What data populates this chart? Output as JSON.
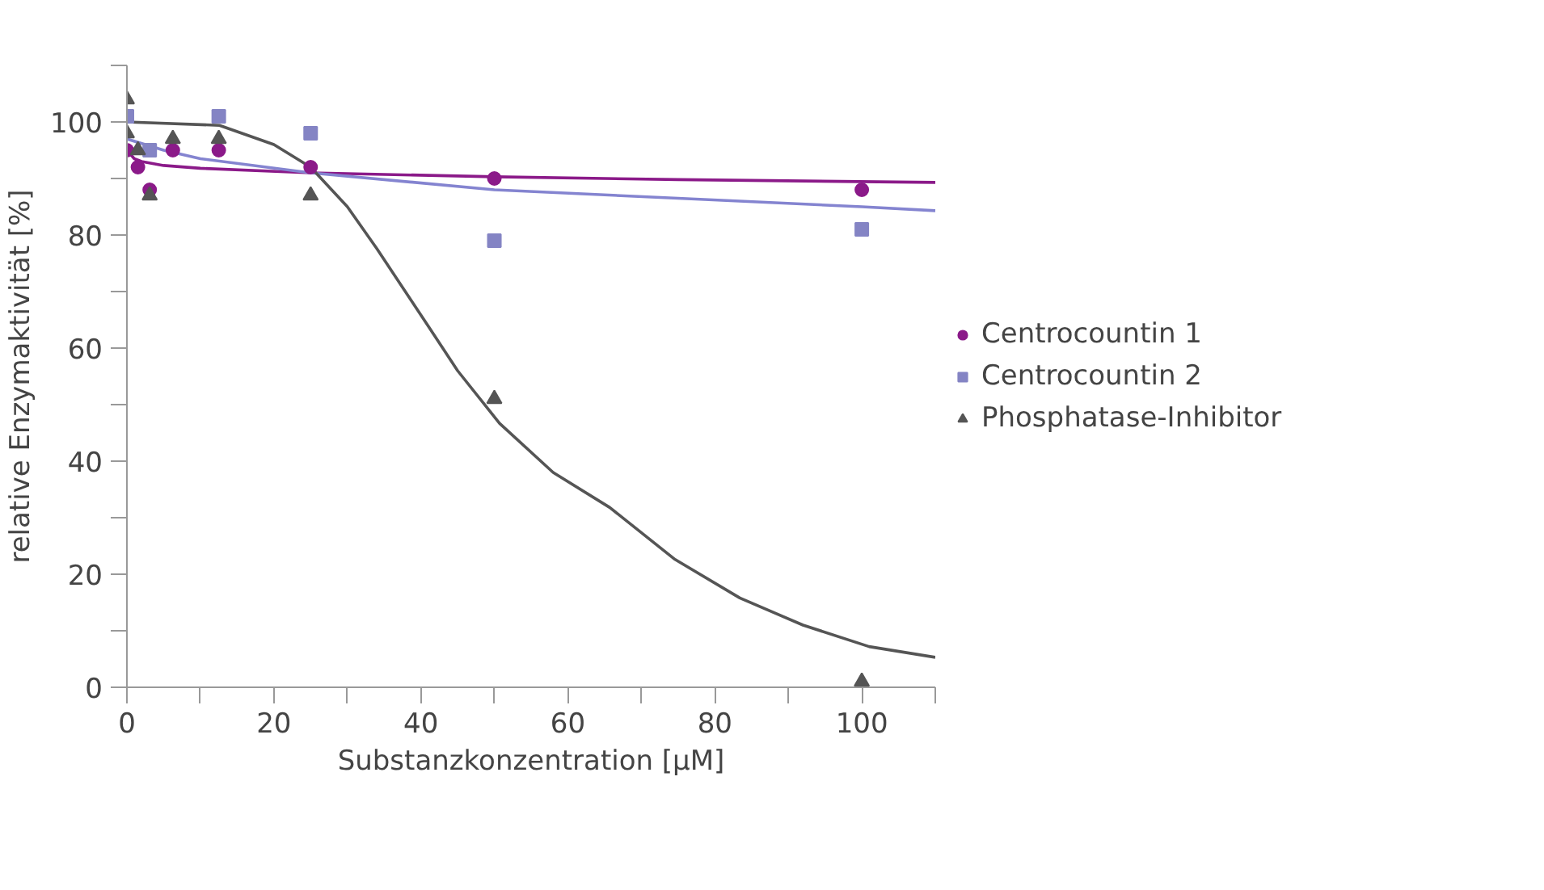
{
  "chart_data": {
    "type": "scatter",
    "xlabel": "Substanzkonzentration [µM]",
    "ylabel": "relative Enzymaktivität [%]",
    "xlim": [
      0,
      110
    ],
    "ylim": [
      0,
      110
    ],
    "xticks": [
      0,
      {
        "value": 10,
        "label": null
      },
      20,
      {
        "value": 30,
        "label": null
      },
      40,
      {
        "value": 50,
        "label": null
      },
      60,
      {
        "value": 70,
        "label": null
      },
      80,
      {
        "value": 90,
        "label": null
      },
      100,
      {
        "value": 110,
        "label": null
      }
    ],
    "yticks": [
      0,
      {
        "value": 10,
        "label": null
      },
      20,
      {
        "value": 30,
        "label": null
      },
      40,
      {
        "value": 50,
        "label": null
      },
      60,
      {
        "value": 70,
        "label": null
      },
      80,
      {
        "value": 90,
        "label": null
      },
      100,
      {
        "value": 110,
        "label": null
      }
    ],
    "grid": false,
    "legend": "right",
    "series": [
      {
        "type": "line",
        "color": "#8b1a89",
        "x": [
          0,
          1,
          2,
          5,
          10,
          25,
          50,
          75,
          110
        ],
        "values": [
          95,
          93.5,
          93,
          92.3,
          91.8,
          91,
          90.3,
          89.8,
          89.3
        ]
      },
      {
        "type": "line",
        "color": "#8484d0",
        "x": [
          0,
          5,
          10,
          25,
          50,
          75,
          100,
          110
        ],
        "values": [
          97,
          95,
          93.5,
          91,
          88,
          86.5,
          85,
          84.3
        ]
      },
      {
        "type": "line",
        "color": "#555555",
        "x": [
          0,
          12.6,
          20,
          25,
          30,
          34,
          41,
          45,
          50.7,
          58,
          65.7,
          74.6,
          83.4,
          92,
          101,
          110
        ],
        "values": [
          100,
          99.4,
          96,
          92,
          85,
          77.6,
          63.9,
          56,
          46.7,
          38,
          31.8,
          22.6,
          15.8,
          11,
          7.2,
          5.3
        ]
      },
      {
        "name": "Centrocountin 1",
        "color": "#8b1a89",
        "marker": "circle",
        "x": [
          0,
          1.5,
          3.1,
          6.25,
          12.5,
          25,
          50,
          100
        ],
        "values": [
          95,
          92,
          88,
          95,
          95,
          92,
          90,
          88
        ]
      },
      {
        "name": "Centrocountin 2",
        "color": "#8484c4",
        "marker": "square",
        "x": [
          0,
          3.1,
          12.5,
          25,
          50,
          100
        ],
        "values": [
          101,
          95,
          101,
          98,
          79,
          81
        ]
      },
      {
        "name": "Phosphatase-Inhibitor",
        "color": "#555555",
        "marker": "triangle",
        "x": [
          0,
          0,
          1.5,
          3.1,
          6.25,
          12.5,
          25,
          50,
          100
        ],
        "values": [
          104,
          98,
          95,
          87,
          97,
          97,
          87,
          51,
          1
        ]
      }
    ]
  }
}
